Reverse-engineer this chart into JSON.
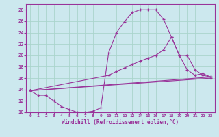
{
  "title": "",
  "xlabel": "Windchill (Refroidissement éolien,°C)",
  "background_color": "#cce8ee",
  "grid_color": "#aad4cc",
  "line_color": "#993399",
  "xlim": [
    -0.5,
    23.5
  ],
  "ylim": [
    10,
    29
  ],
  "xticks": [
    0,
    1,
    2,
    3,
    4,
    5,
    6,
    7,
    8,
    9,
    10,
    11,
    12,
    13,
    14,
    15,
    16,
    17,
    18,
    19,
    20,
    21,
    22,
    23
  ],
  "yticks": [
    10,
    12,
    14,
    16,
    18,
    20,
    22,
    24,
    26,
    28
  ],
  "series": [
    {
      "x": [
        0,
        1,
        2,
        3,
        4,
        5,
        6,
        7,
        8,
        9,
        10,
        11,
        12,
        13,
        14,
        15,
        16,
        17,
        18,
        19,
        20,
        21,
        22,
        23
      ],
      "y": [
        13.8,
        13.0,
        13.0,
        12.0,
        11.0,
        10.5,
        10.0,
        10.0,
        10.2,
        10.8,
        20.5,
        24.0,
        25.9,
        27.5,
        28.0,
        28.0,
        28.0,
        26.3,
        23.2,
        20.0,
        17.5,
        16.5,
        16.8,
        16.2
      ]
    },
    {
      "x": [
        0,
        10,
        11,
        12,
        13,
        14,
        15,
        16,
        17,
        18,
        19,
        20,
        21,
        22,
        23
      ],
      "y": [
        13.8,
        16.5,
        17.2,
        17.8,
        18.4,
        19.0,
        19.5,
        20.0,
        21.0,
        23.2,
        20.0,
        20.0,
        17.5,
        16.5,
        16.2
      ]
    },
    {
      "x": [
        0,
        23
      ],
      "y": [
        13.8,
        16.2
      ]
    },
    {
      "x": [
        0,
        23
      ],
      "y": [
        13.8,
        16.0
      ]
    }
  ]
}
